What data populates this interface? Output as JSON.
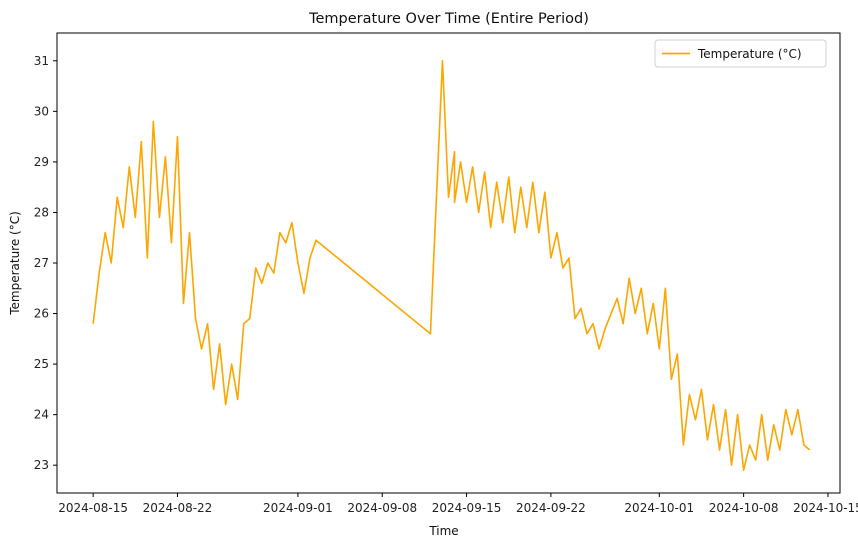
{
  "chart_data": {
    "type": "line",
    "title": "Temperature Over Time (Entire Period)",
    "xlabel": "Time",
    "ylabel": "Temperature (°C)",
    "x_ticks": [
      "2024-08-15",
      "2024-08-22",
      "2024-09-01",
      "2024-09-08",
      "2024-09-15",
      "2024-09-22",
      "2024-10-01",
      "2024-10-08",
      "2024-10-15"
    ],
    "y_ticks": [
      23,
      24,
      25,
      26,
      27,
      28,
      29,
      30,
      31
    ],
    "xlim": [
      "2024-08-12",
      "2024-10-16"
    ],
    "ylim": [
      22.45,
      31.55
    ],
    "grid": false,
    "legend_position": "top-right",
    "series": [
      {
        "name": "Temperature (°C)",
        "color": "#ffa500",
        "points": [
          [
            "2024-08-15",
            25.8
          ],
          [
            "2024-08-15",
            26.8
          ],
          [
            "2024-08-16",
            27.6
          ],
          [
            "2024-08-16",
            27.0
          ],
          [
            "2024-08-17",
            28.3
          ],
          [
            "2024-08-17",
            27.7
          ],
          [
            "2024-08-18",
            28.9
          ],
          [
            "2024-08-18",
            27.9
          ],
          [
            "2024-08-19",
            29.4
          ],
          [
            "2024-08-19",
            27.1
          ],
          [
            "2024-08-20",
            29.8
          ],
          [
            "2024-08-20",
            27.9
          ],
          [
            "2024-08-21",
            29.1
          ],
          [
            "2024-08-21",
            27.4
          ],
          [
            "2024-08-22",
            29.5
          ],
          [
            "2024-08-22",
            26.2
          ],
          [
            "2024-08-23",
            27.6
          ],
          [
            "2024-08-23",
            25.9
          ],
          [
            "2024-08-24",
            25.3
          ],
          [
            "2024-08-24",
            25.8
          ],
          [
            "2024-08-25",
            24.5
          ],
          [
            "2024-08-25",
            25.4
          ],
          [
            "2024-08-26",
            24.2
          ],
          [
            "2024-08-26",
            25.0
          ],
          [
            "2024-08-27",
            24.3
          ],
          [
            "2024-08-27",
            25.8
          ],
          [
            "2024-08-28",
            25.9
          ],
          [
            "2024-08-28",
            26.9
          ],
          [
            "2024-08-29",
            26.6
          ],
          [
            "2024-08-29",
            27.0
          ],
          [
            "2024-08-30",
            26.8
          ],
          [
            "2024-08-30",
            27.6
          ],
          [
            "2024-08-31",
            27.4
          ],
          [
            "2024-08-31",
            27.8
          ],
          [
            "2024-09-01",
            27.0
          ],
          [
            "2024-09-01",
            26.4
          ],
          [
            "2024-09-02",
            27.1
          ],
          [
            "2024-09-02",
            27.45
          ],
          [
            "2024-09-12",
            25.6
          ],
          [
            "2024-09-13",
            31.0
          ],
          [
            "2024-09-13",
            28.3
          ],
          [
            "2024-09-13",
            29.2
          ],
          [
            "2024-09-14",
            28.2
          ],
          [
            "2024-09-14",
            29.0
          ],
          [
            "2024-09-15",
            28.2
          ],
          [
            "2024-09-15",
            28.9
          ],
          [
            "2024-09-16",
            28.0
          ],
          [
            "2024-09-16",
            28.8
          ],
          [
            "2024-09-17",
            27.7
          ],
          [
            "2024-09-17",
            28.6
          ],
          [
            "2024-09-18",
            27.8
          ],
          [
            "2024-09-18",
            28.7
          ],
          [
            "2024-09-19",
            27.6
          ],
          [
            "2024-09-19",
            28.5
          ],
          [
            "2024-09-20",
            27.7
          ],
          [
            "2024-09-20",
            28.6
          ],
          [
            "2024-09-21",
            27.6
          ],
          [
            "2024-09-21",
            28.4
          ],
          [
            "2024-09-22",
            27.1
          ],
          [
            "2024-09-22",
            27.6
          ],
          [
            "2024-09-23",
            26.9
          ],
          [
            "2024-09-23",
            27.1
          ],
          [
            "2024-09-24",
            25.9
          ],
          [
            "2024-09-24",
            26.1
          ],
          [
            "2024-09-25",
            25.6
          ],
          [
            "2024-09-25",
            25.8
          ],
          [
            "2024-09-26",
            25.3
          ],
          [
            "2024-09-26",
            25.7
          ],
          [
            "2024-09-27",
            26.0
          ],
          [
            "2024-09-27",
            26.3
          ],
          [
            "2024-09-28",
            25.8
          ],
          [
            "2024-09-28",
            26.7
          ],
          [
            "2024-09-29",
            26.0
          ],
          [
            "2024-09-29",
            26.5
          ],
          [
            "2024-09-30",
            25.6
          ],
          [
            "2024-09-30",
            26.2
          ],
          [
            "2024-10-01",
            25.3
          ],
          [
            "2024-10-01",
            26.5
          ],
          [
            "2024-10-02",
            24.7
          ],
          [
            "2024-10-02",
            25.2
          ],
          [
            "2024-10-03",
            23.4
          ],
          [
            "2024-10-03",
            24.4
          ],
          [
            "2024-10-04",
            23.9
          ],
          [
            "2024-10-04",
            24.5
          ],
          [
            "2024-10-05",
            23.5
          ],
          [
            "2024-10-05",
            24.2
          ],
          [
            "2024-10-06",
            23.3
          ],
          [
            "2024-10-06",
            24.1
          ],
          [
            "2024-10-07",
            23.0
          ],
          [
            "2024-10-07",
            24.0
          ],
          [
            "2024-10-08",
            22.9
          ],
          [
            "2024-10-08",
            23.4
          ],
          [
            "2024-10-09",
            23.1
          ],
          [
            "2024-10-09",
            24.0
          ],
          [
            "2024-10-10",
            23.1
          ],
          [
            "2024-10-10",
            23.8
          ],
          [
            "2024-10-11",
            23.3
          ],
          [
            "2024-10-11",
            24.1
          ],
          [
            "2024-10-12",
            23.6
          ],
          [
            "2024-10-12",
            24.1
          ],
          [
            "2024-10-13",
            23.4
          ],
          [
            "2024-10-13",
            23.3
          ]
        ]
      }
    ]
  }
}
